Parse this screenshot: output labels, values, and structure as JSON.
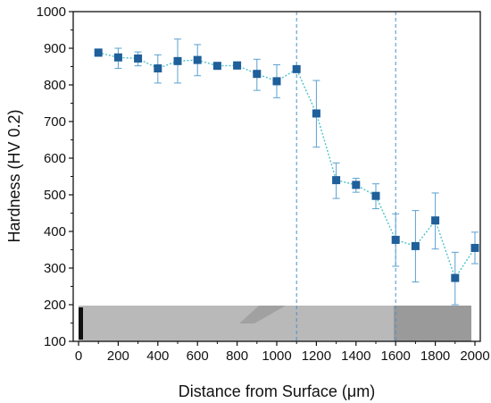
{
  "chart_data": {
    "type": "scatter",
    "xlabel": "Distance from Surface (μm)",
    "ylabel": "Hardness (HV 0.2)",
    "xlim": [
      0,
      2000
    ],
    "ylim": [
      100,
      1000
    ],
    "x_ticks": [
      0,
      200,
      400,
      600,
      800,
      1000,
      1200,
      1400,
      1600,
      1800,
      2000
    ],
    "y_ticks": [
      100,
      200,
      300,
      400,
      500,
      600,
      700,
      800,
      900,
      1000
    ],
    "grid": false,
    "marker_color": "#1f5f9a",
    "line_color": "#4cc3c8",
    "vline_color": "#4a90c8",
    "vlines": [
      1100,
      1600
    ],
    "series": [
      {
        "x": [
          100,
          200,
          300,
          400,
          500,
          600,
          700,
          800,
          900,
          1000,
          1100,
          1200,
          1300,
          1400,
          1500,
          1600,
          1700,
          1800,
          1900,
          2000
        ],
        "y": [
          888,
          875,
          872,
          845,
          865,
          868,
          852,
          853,
          830,
          810,
          843,
          722,
          540,
          527,
          497,
          377,
          360,
          430,
          273,
          355
        ],
        "err_low": [
          878,
          845,
          852,
          805,
          805,
          825,
          852,
          843,
          785,
          765,
          843,
          630,
          490,
          507,
          462,
          305,
          262,
          352,
          200,
          312
        ],
        "err_high": [
          898,
          900,
          890,
          882,
          925,
          910,
          852,
          863,
          870,
          855,
          843,
          812,
          587,
          545,
          530,
          448,
          457,
          505,
          343,
          398
        ]
      }
    ]
  }
}
